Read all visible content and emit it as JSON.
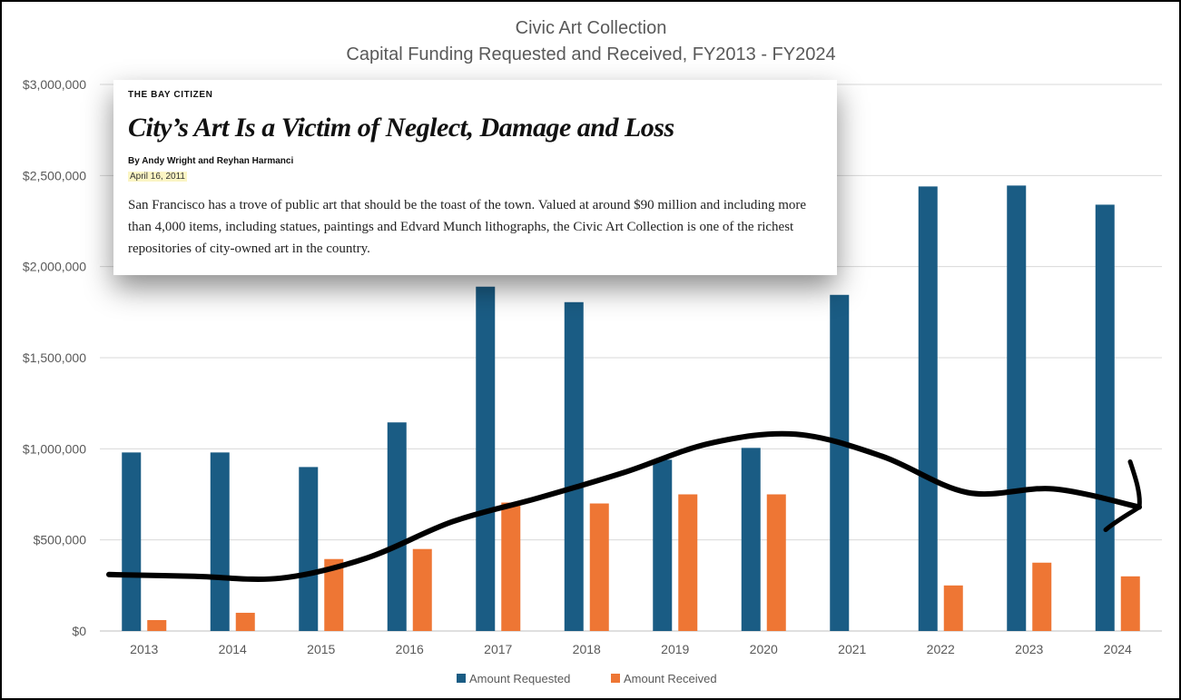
{
  "chart_data": {
    "type": "bar",
    "title": "Civic Art Collection",
    "subtitle": "Capital Funding Requested and Received, FY2013 - FY2024",
    "categories": [
      "2013",
      "2014",
      "2015",
      "2016",
      "2017",
      "2018",
      "2019",
      "2020",
      "2021",
      "2022",
      "2023",
      "2024"
    ],
    "series": [
      {
        "name": "Amount Requested",
        "color": "#1a5c84",
        "values": [
          980000,
          980000,
          900000,
          1145000,
          1890000,
          1805000,
          940000,
          1005000,
          1845000,
          2440000,
          2445000,
          2340000
        ]
      },
      {
        "name": "Amount Received",
        "color": "#ee7634",
        "values": [
          60000,
          100000,
          395000,
          450000,
          705000,
          700000,
          750000,
          750000,
          0,
          250000,
          375000,
          300000
        ]
      }
    ],
    "ylim": [
      0,
      3000000
    ],
    "yticks": [
      0,
      500000,
      1000000,
      1500000,
      2000000,
      2500000,
      3000000
    ],
    "ytick_labels": [
      "$0",
      "$500,000",
      "$1,000,000",
      "$1,500,000",
      "$2,000,000",
      "$2,500,000",
      "$3,000,000"
    ],
    "grid": true,
    "legend_position": "bottom",
    "annotation": {
      "type": "hand-drawn trend line",
      "color": "#000000",
      "values": [
        310000,
        300000,
        290000,
        400000,
        600000,
        730000,
        870000,
        1030000,
        1080000,
        960000,
        760000,
        780000,
        680000
      ]
    }
  },
  "article": {
    "kicker": "THE BAY CITIZEN",
    "headline": "City’s Art Is a Victim of Neglect, Damage and Loss",
    "byline": "By Andy Wright and Reyhan Harmanci",
    "date": "April 16, 2011",
    "body": "San Francisco has a trove of public art that should be the toast of the town. Valued at around $90 million and including more than 4,000 items, including statues, paintings and Edvard Munch lithographs, the Civic Art Collection is one of the richest repositories of city-owned art in the country."
  }
}
